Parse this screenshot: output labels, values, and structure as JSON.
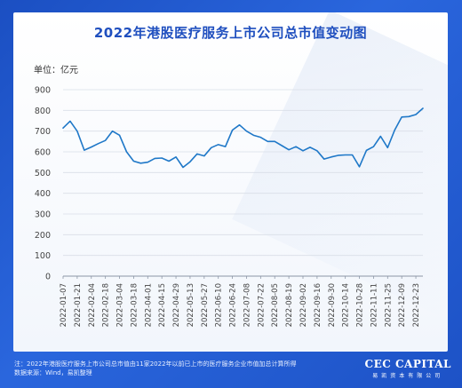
{
  "chart_data": {
    "type": "line",
    "title": "2022年港股医疗服务上市公司总市值变动图",
    "unit_label": "单位：亿元",
    "xlabel": "",
    "ylabel": "",
    "ylim": [
      0,
      900
    ],
    "yticks": [
      0,
      100,
      200,
      300,
      400,
      500,
      600,
      700,
      800,
      900
    ],
    "grid": true,
    "line_color": "#1f78c8",
    "x_tick_labels": [
      "2022-01-07",
      "2022-01-21",
      "2022-02-04",
      "2022-02-18",
      "2022-03-04",
      "2022-03-18",
      "2022-04-01",
      "2022-04-15",
      "2022-04-29",
      "2022-05-13",
      "2022-05-27",
      "2022-06-10",
      "2022-06-24",
      "2022-07-08",
      "2022-07-22",
      "2022-08-05",
      "2022-08-19",
      "2022-09-02",
      "2022-09-16",
      "2022-09-30",
      "2022-10-14",
      "2022-10-28",
      "2022-11-11",
      "2022-11-25",
      "2022-12-09",
      "2022-12-23"
    ],
    "x": [
      "2022-01-07",
      "2022-01-14",
      "2022-01-21",
      "2022-01-28",
      "2022-02-04",
      "2022-02-11",
      "2022-02-18",
      "2022-02-25",
      "2022-03-04",
      "2022-03-11",
      "2022-03-18",
      "2022-03-25",
      "2022-04-01",
      "2022-04-08",
      "2022-04-15",
      "2022-04-22",
      "2022-04-29",
      "2022-05-06",
      "2022-05-13",
      "2022-05-20",
      "2022-05-27",
      "2022-06-03",
      "2022-06-10",
      "2022-06-17",
      "2022-06-24",
      "2022-07-01",
      "2022-07-08",
      "2022-07-15",
      "2022-07-22",
      "2022-07-29",
      "2022-08-05",
      "2022-08-12",
      "2022-08-19",
      "2022-08-26",
      "2022-09-02",
      "2022-09-09",
      "2022-09-16",
      "2022-09-23",
      "2022-09-30",
      "2022-10-07",
      "2022-10-14",
      "2022-10-21",
      "2022-10-28",
      "2022-11-04",
      "2022-11-11",
      "2022-11-18",
      "2022-11-25",
      "2022-12-02",
      "2022-12-09",
      "2022-12-16",
      "2022-12-23",
      "2022-12-30"
    ],
    "series": [
      {
        "name": "",
        "values": [
          715,
          748,
          700,
          608,
          623,
          640,
          655,
          700,
          680,
          600,
          555,
          545,
          550,
          568,
          570,
          555,
          575,
          525,
          552,
          590,
          580,
          620,
          635,
          625,
          705,
          730,
          700,
          680,
          670,
          650,
          650,
          630,
          610,
          625,
          605,
          622,
          605,
          565,
          575,
          583,
          585,
          585,
          528,
          607,
          625,
          675,
          620,
          705,
          768,
          770,
          780,
          810
        ]
      }
    ]
  },
  "footer": {
    "note": "注：2022年港股医疗服务上市公司总市值由11家2022年以前已上市的医疗服务企业市值加总计算所得",
    "source": "数据来源：Wind，易凯整理"
  },
  "logo": {
    "main": "CEC CAPITAL",
    "sub": "易凯资本有限公司"
  }
}
